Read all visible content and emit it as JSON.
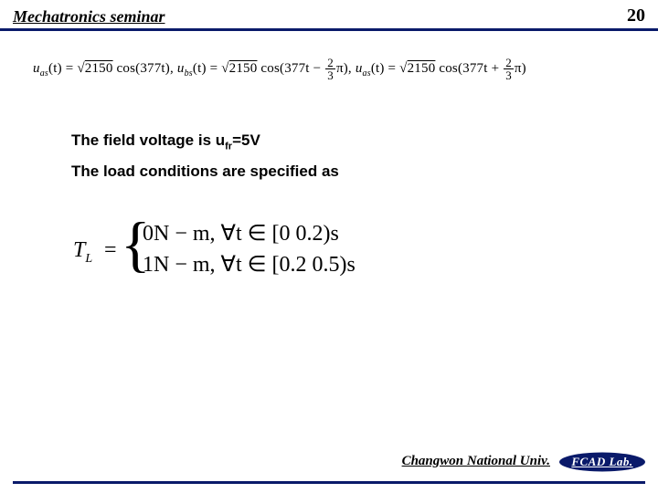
{
  "header": {
    "title": "Mechatronics seminar",
    "page": "20",
    "rule_color": "#0a1a6a"
  },
  "equations": {
    "uas_lhs": "u",
    "uas_sub": "as",
    "ubs_sub": "bs",
    "ucs_sub": "as",
    "t_arg": "(t) = ",
    "sqrt_val": "2150",
    "cos1": " cos(377t),   ",
    "cos2_pre": " cos(377t − ",
    "cos3_pre": " cos(377t + ",
    "frac_num": "2",
    "frac_den": "3",
    "pi_close": "π),   ",
    "pi_close_end": "π)"
  },
  "body": {
    "line1_pre": "The field voltage is u",
    "line1_sub": "fr",
    "line1_post": "=5V",
    "line2": "The load conditions are specified as"
  },
  "piecewise": {
    "lhs_T": "T",
    "lhs_sub": "L",
    "eq": "=",
    "case1": "0N − m, ∀t ∈ [0   0.2)s",
    "case2": "1N − m, ∀t ∈ [0.2   0.5)s"
  },
  "footer": {
    "univ": "Changwon National Univ.",
    "lab": "FCAD Lab."
  }
}
